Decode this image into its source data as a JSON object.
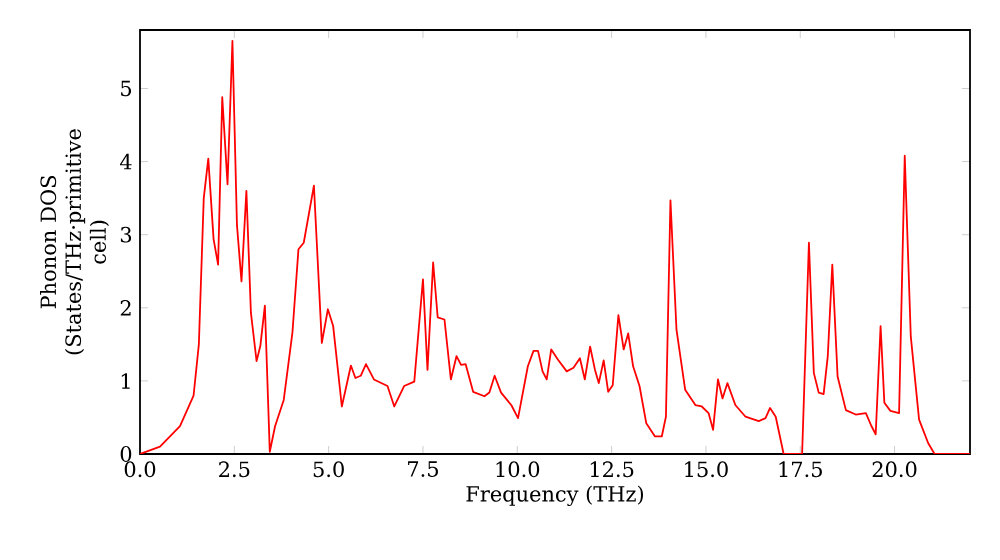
{
  "chart_data": {
    "type": "line",
    "xlabel": "Frequency (THz)",
    "ylabel": "Phonon DOS (States/THz·primitive cell)",
    "xlim": [
      0,
      22
    ],
    "ylim": [
      0,
      5.8
    ],
    "xticks": [
      {
        "value": 0,
        "label": "0.0"
      },
      {
        "value": 2.5,
        "label": "2.5"
      },
      {
        "value": 5,
        "label": "5.0"
      },
      {
        "value": 7.5,
        "label": "7.5"
      },
      {
        "value": 10,
        "label": "10.0"
      },
      {
        "value": 12.5,
        "label": "12.5"
      },
      {
        "value": 15,
        "label": "15.0"
      },
      {
        "value": 17.5,
        "label": "17.5"
      },
      {
        "value": 20,
        "label": "20.0"
      }
    ],
    "yticks": [
      0,
      1,
      2,
      3,
      4,
      5
    ],
    "grid": false,
    "series": [
      {
        "color": "#ff0000",
        "x": [
          0,
          0.53,
          1.06,
          1.42,
          1.56,
          1.69,
          1.81,
          1.95,
          2.07,
          2.18,
          2.32,
          2.45,
          2.57,
          2.69,
          2.82,
          2.94,
          3.09,
          3.19,
          3.31,
          3.44,
          3.58,
          3.81,
          4.04,
          4.2,
          4.34,
          4.61,
          4.82,
          4.98,
          5.12,
          5.35,
          5.59,
          5.71,
          5.85,
          5.99,
          6.2,
          6.56,
          6.74,
          7.0,
          7.27,
          7.5,
          7.62,
          7.77,
          7.89,
          8.07,
          8.24,
          8.39,
          8.51,
          8.63,
          8.83,
          9.13,
          9.26,
          9.4,
          9.57,
          9.84,
          10.02,
          10.28,
          10.43,
          10.55,
          10.67,
          10.78,
          10.9,
          11.08,
          11.31,
          11.49,
          11.66,
          11.79,
          11.93,
          12.06,
          12.16,
          12.29,
          12.41,
          12.53,
          12.68,
          12.82,
          12.94,
          13.07,
          13.24,
          13.42,
          13.65,
          13.83,
          13.94,
          14.06,
          14.22,
          14.45,
          14.72,
          14.89,
          15.07,
          15.19,
          15.32,
          15.44,
          15.57,
          15.78,
          16.05,
          16.4,
          16.58,
          16.7,
          16.85,
          17.06,
          17.55,
          17.73,
          17.86,
          17.99,
          18.12,
          18.23,
          18.35,
          18.49,
          18.71,
          18.97,
          19.24,
          19.38,
          19.5,
          19.63,
          19.73,
          19.89,
          20.12,
          20.27,
          20.43,
          20.65,
          20.89,
          21.06,
          22
        ],
        "values": [
          0,
          0.1,
          0.38,
          0.8,
          1.5,
          3.5,
          4.04,
          2.94,
          2.59,
          4.88,
          3.69,
          5.65,
          3.13,
          2.36,
          3.6,
          1.93,
          1.27,
          1.48,
          2.03,
          0.03,
          0.38,
          0.74,
          1.66,
          2.8,
          2.89,
          3.67,
          1.52,
          1.98,
          1.75,
          0.65,
          1.21,
          1.04,
          1.07,
          1.23,
          1.02,
          0.93,
          0.65,
          0.93,
          0.99,
          2.39,
          1.15,
          2.62,
          1.87,
          1.84,
          1.02,
          1.34,
          1.22,
          1.23,
          0.85,
          0.79,
          0.84,
          1.07,
          0.84,
          0.67,
          0.49,
          1.2,
          1.41,
          1.41,
          1.13,
          1.02,
          1.43,
          1.29,
          1.13,
          1.18,
          1.31,
          1.02,
          1.47,
          1.15,
          0.97,
          1.28,
          0.85,
          0.94,
          1.9,
          1.43,
          1.65,
          1.2,
          0.93,
          0.42,
          0.24,
          0.24,
          0.51,
          3.47,
          1.7,
          0.88,
          0.67,
          0.65,
          0.56,
          0.33,
          1.02,
          0.76,
          0.97,
          0.67,
          0.51,
          0.45,
          0.49,
          0.63,
          0.51,
          0,
          0,
          2.89,
          1.11,
          0.84,
          0.82,
          1.34,
          2.59,
          1.06,
          0.6,
          0.54,
          0.56,
          0.39,
          0.27,
          1.75,
          0.7,
          0.59,
          0.56,
          4.08,
          1.61,
          0.47,
          0.15,
          0,
          0
        ]
      }
    ]
  }
}
